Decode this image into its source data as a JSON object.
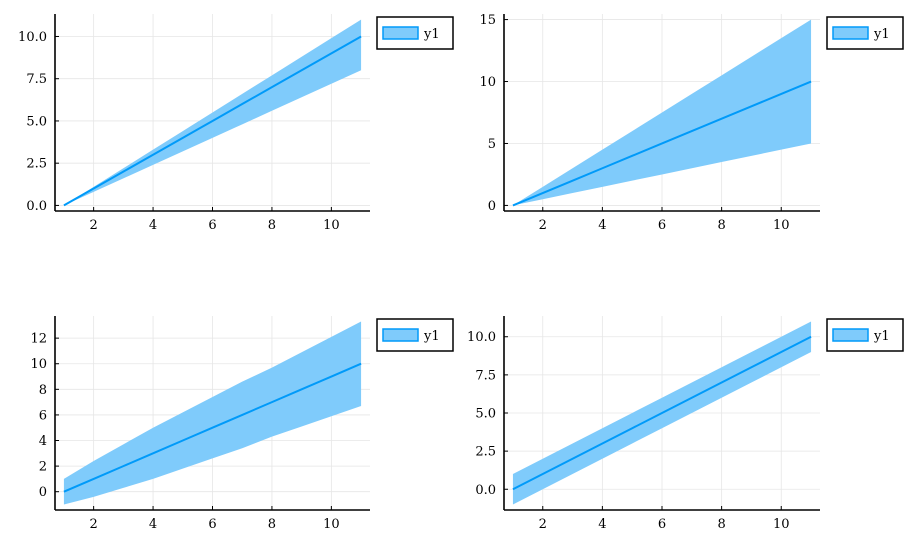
{
  "colors": {
    "series_line": "#009af9",
    "series_band": "#7fcbfb",
    "axis": "#000000",
    "grid": "#e6e6e6",
    "background": "#ffffff"
  },
  "chart_data": [
    {
      "type": "line",
      "panel": "top-left",
      "x": [
        1,
        2,
        3,
        4,
        5,
        6,
        7,
        8,
        9,
        10,
        11
      ],
      "series": [
        {
          "name": "y1",
          "values": [
            0,
            1,
            2,
            3,
            4,
            5,
            6,
            7,
            8,
            9,
            10
          ],
          "ribbon_lower": [
            0,
            0.8,
            1.6,
            2.4,
            3.2,
            4.0,
            4.8,
            5.6,
            6.4,
            7.2,
            8.0
          ],
          "ribbon_upper": [
            0,
            1.1,
            2.2,
            3.3,
            4.4,
            5.5,
            6.6,
            7.7,
            8.8,
            9.9,
            11.0
          ]
        }
      ],
      "xlim": [
        0.7,
        11.3
      ],
      "ylim": [
        -0.33,
        11.33
      ],
      "xticks": [
        2,
        4,
        6,
        8,
        10
      ],
      "xtick_labels": [
        "2",
        "4",
        "6",
        "8",
        "10"
      ],
      "yticks": [
        0,
        2.5,
        5,
        7.5,
        10
      ],
      "ytick_labels": [
        "0.0",
        "2.5",
        "5.0",
        "7.5",
        "10.0"
      ],
      "legend": {
        "entries": [
          "y1"
        ],
        "position": "outside-top-right"
      },
      "grid": true
    },
    {
      "type": "line",
      "panel": "top-right",
      "x": [
        1,
        2,
        3,
        4,
        5,
        6,
        7,
        8,
        9,
        10,
        11
      ],
      "series": [
        {
          "name": "y1",
          "values": [
            0,
            1,
            2,
            3,
            4,
            5,
            6,
            7,
            8,
            9,
            10
          ],
          "ribbon_lower": [
            0,
            0.5,
            1.0,
            1.5,
            2.0,
            2.5,
            3.0,
            3.5,
            4.0,
            4.5,
            5.0
          ],
          "ribbon_upper": [
            0,
            1.5,
            3.0,
            4.5,
            6.0,
            7.5,
            9.0,
            10.5,
            12.0,
            13.5,
            15.0
          ]
        }
      ],
      "xlim": [
        0.7,
        11.3
      ],
      "ylim": [
        -0.45,
        15.45
      ],
      "xticks": [
        2,
        4,
        6,
        8,
        10
      ],
      "xtick_labels": [
        "2",
        "4",
        "6",
        "8",
        "10"
      ],
      "yticks": [
        0,
        5,
        10,
        15
      ],
      "ytick_labels": [
        "0",
        "5",
        "10",
        "15"
      ],
      "legend": {
        "entries": [
          "y1"
        ],
        "position": "outside-top-right"
      },
      "grid": true
    },
    {
      "type": "line",
      "panel": "bottom-left",
      "x": [
        1,
        2,
        3,
        4,
        5,
        6,
        7,
        8,
        9,
        10,
        11
      ],
      "series": [
        {
          "name": "y1",
          "values": [
            0,
            1,
            2,
            3,
            4,
            5,
            6,
            7,
            8,
            9,
            10
          ],
          "ribbon_lower": [
            -1.0,
            -0.4,
            0.3,
            1.0,
            1.8,
            2.6,
            3.4,
            4.3,
            5.1,
            5.9,
            6.7
          ],
          "ribbon_upper": [
            1.0,
            2.4,
            3.7,
            5.0,
            6.2,
            7.4,
            8.6,
            9.7,
            10.9,
            12.1,
            13.3
          ]
        }
      ],
      "xlim": [
        0.7,
        11.3
      ],
      "ylim": [
        -1.43,
        13.73
      ],
      "xticks": [
        2,
        4,
        6,
        8,
        10
      ],
      "xtick_labels": [
        "2",
        "4",
        "6",
        "8",
        "10"
      ],
      "yticks": [
        0,
        2,
        4,
        6,
        8,
        10,
        12
      ],
      "ytick_labels": [
        "0",
        "2",
        "4",
        "6",
        "8",
        "10",
        "12"
      ],
      "legend": {
        "entries": [
          "y1"
        ],
        "position": "outside-top-right"
      },
      "grid": true
    },
    {
      "type": "line",
      "panel": "bottom-right",
      "x": [
        1,
        2,
        3,
        4,
        5,
        6,
        7,
        8,
        9,
        10,
        11
      ],
      "series": [
        {
          "name": "y1",
          "values": [
            0,
            1,
            2,
            3,
            4,
            5,
            6,
            7,
            8,
            9,
            10
          ],
          "ribbon_lower": [
            -1,
            0,
            1,
            2,
            3,
            4,
            5,
            6,
            7,
            8,
            9
          ],
          "ribbon_upper": [
            1,
            2,
            3,
            4,
            5,
            6,
            7,
            8,
            9,
            10,
            11
          ]
        }
      ],
      "xlim": [
        0.7,
        11.3
      ],
      "ylim": [
        -1.36,
        11.36
      ],
      "xticks": [
        2,
        4,
        6,
        8,
        10
      ],
      "xtick_labels": [
        "2",
        "4",
        "6",
        "8",
        "10"
      ],
      "yticks": [
        0,
        2.5,
        5,
        7.5,
        10
      ],
      "ytick_labels": [
        "0.0",
        "2.5",
        "5.0",
        "7.5",
        "10.0"
      ],
      "legend": {
        "entries": [
          "y1"
        ],
        "position": "outside-top-right"
      },
      "grid": true
    }
  ]
}
